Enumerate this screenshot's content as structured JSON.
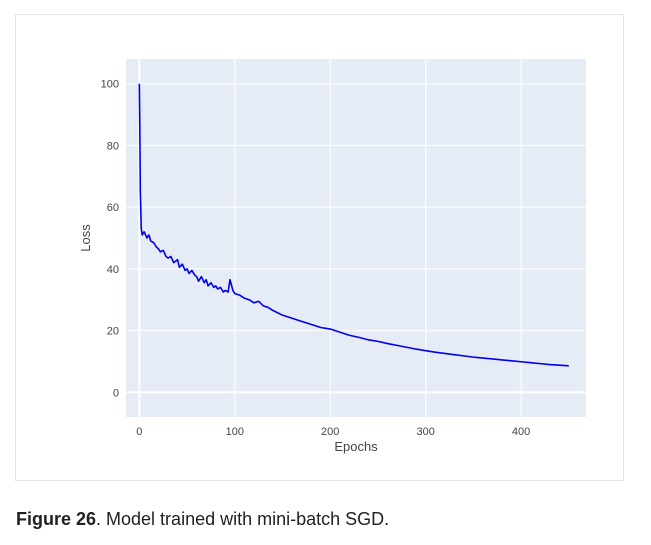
{
  "chart_data": {
    "type": "line",
    "title": "",
    "xlabel": "Epochs",
    "ylabel": "Loss",
    "xlim": [
      -14,
      468
    ],
    "ylim": [
      -8,
      108
    ],
    "xticks": [
      0,
      100,
      200,
      300,
      400
    ],
    "yticks": [
      0,
      20,
      40,
      60,
      80,
      100
    ],
    "xtick_labels": [
      "0",
      "100",
      "200",
      "300",
      "400"
    ],
    "ytick_labels": [
      "0",
      "20",
      "40",
      "60",
      "80",
      "100"
    ],
    "grid": true,
    "background": "#e5ecf6",
    "series": [
      {
        "color": "#0000ee",
        "x": [
          0,
          0.5,
          1,
          2,
          3,
          5,
          8,
          10,
          12,
          15,
          18,
          20,
          22,
          25,
          28,
          30,
          33,
          36,
          40,
          42,
          45,
          48,
          50,
          52,
          55,
          58,
          60,
          62,
          65,
          68,
          70,
          72,
          75,
          78,
          80,
          82,
          85,
          88,
          90,
          93,
          95,
          98,
          100,
          105,
          110,
          115,
          120,
          125,
          130,
          135,
          140,
          150,
          160,
          170,
          180,
          190,
          200,
          210,
          220,
          230,
          240,
          250,
          260,
          270,
          280,
          290,
          300,
          310,
          320,
          330,
          340,
          350,
          360,
          370,
          380,
          390,
          400,
          410,
          420,
          430,
          440,
          450
        ],
        "y": [
          100,
          85,
          65,
          53,
          51,
          52,
          50,
          51,
          49,
          48.5,
          47,
          46.5,
          45.5,
          46,
          44,
          43.5,
          44,
          42,
          43,
          40.5,
          41.5,
          39.5,
          40,
          38.5,
          39.5,
          38,
          37.5,
          36,
          37.5,
          35.5,
          36.5,
          34.5,
          35.5,
          34,
          34.5,
          33.5,
          34,
          32.5,
          33,
          32.5,
          36.5,
          33,
          32,
          31.5,
          30.5,
          30,
          29,
          29.5,
          28,
          27.5,
          26.5,
          25,
          24,
          23,
          22,
          21,
          20.5,
          19.5,
          18.5,
          17.8,
          17,
          16.5,
          15.8,
          15.2,
          14.6,
          14,
          13.5,
          13,
          12.6,
          12.2,
          11.8,
          11.4,
          11.1,
          10.8,
          10.5,
          10.2,
          9.9,
          9.6,
          9.3,
          9.0,
          8.8,
          8.6
        ]
      }
    ]
  },
  "caption": {
    "label": "Figure 26",
    "text": ". Model trained with mini-batch SGD."
  }
}
